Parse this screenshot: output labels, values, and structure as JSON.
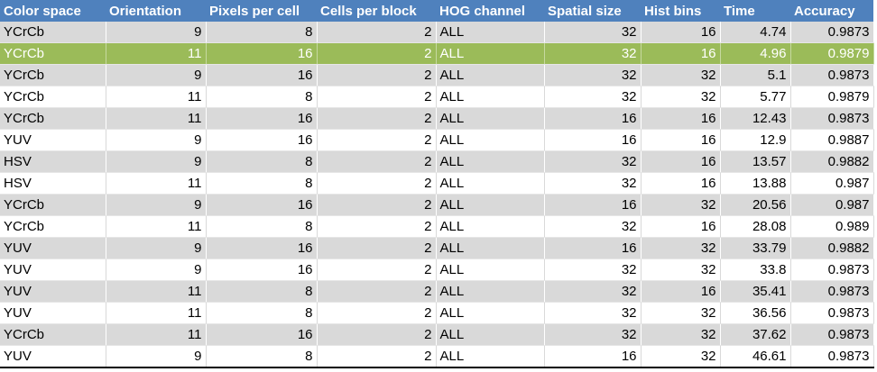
{
  "columns": [
    "Color space",
    "Orientation",
    "Pixels per cell",
    "Cells per block",
    "HOG channel",
    "Spatial size",
    "Hist bins",
    "Time",
    "Accuracy"
  ],
  "colors": {
    "header": "#4f81bd",
    "band": "#d9d9d9",
    "selected": "#9bbb59"
  },
  "selected_row": 1,
  "rows": [
    [
      "YCrCb",
      "9",
      "8",
      "2",
      "ALL",
      "32",
      "16",
      "4.74",
      "0.9873"
    ],
    [
      "YCrCb",
      "11",
      "16",
      "2",
      "ALL",
      "32",
      "16",
      "4.96",
      "0.9879"
    ],
    [
      "YCrCb",
      "9",
      "16",
      "2",
      "ALL",
      "32",
      "32",
      "5.1",
      "0.9873"
    ],
    [
      "YCrCb",
      "11",
      "8",
      "2",
      "ALL",
      "32",
      "32",
      "5.77",
      "0.9879"
    ],
    [
      "YCrCb",
      "11",
      "16",
      "2",
      "ALL",
      "16",
      "16",
      "12.43",
      "0.9873"
    ],
    [
      "YUV",
      "9",
      "16",
      "2",
      "ALL",
      "16",
      "16",
      "12.9",
      "0.9887"
    ],
    [
      "HSV",
      "9",
      "8",
      "2",
      "ALL",
      "32",
      "16",
      "13.57",
      "0.9882"
    ],
    [
      "HSV",
      "11",
      "8",
      "2",
      "ALL",
      "32",
      "16",
      "13.88",
      "0.987"
    ],
    [
      "YCrCb",
      "9",
      "16",
      "2",
      "ALL",
      "16",
      "32",
      "20.56",
      "0.987"
    ],
    [
      "YCrCb",
      "11",
      "8",
      "2",
      "ALL",
      "32",
      "16",
      "28.08",
      "0.989"
    ],
    [
      "YUV",
      "9",
      "16",
      "2",
      "ALL",
      "16",
      "32",
      "33.79",
      "0.9882"
    ],
    [
      "YUV",
      "9",
      "16",
      "2",
      "ALL",
      "32",
      "32",
      "33.8",
      "0.9873"
    ],
    [
      "YUV",
      "11",
      "8",
      "2",
      "ALL",
      "32",
      "16",
      "35.41",
      "0.9873"
    ],
    [
      "YUV",
      "11",
      "8",
      "2",
      "ALL",
      "32",
      "32",
      "36.56",
      "0.9873"
    ],
    [
      "YCrCb",
      "11",
      "16",
      "2",
      "ALL",
      "32",
      "32",
      "37.62",
      "0.9873"
    ],
    [
      "YUV",
      "9",
      "8",
      "2",
      "ALL",
      "16",
      "32",
      "46.61",
      "0.9873"
    ]
  ]
}
